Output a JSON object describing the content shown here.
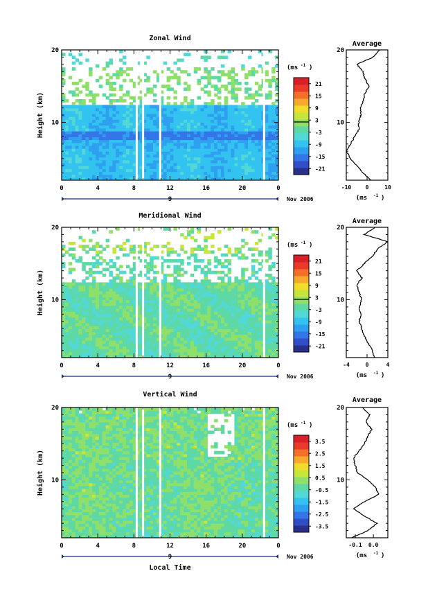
{
  "chart_data": [
    {
      "type": "heatmap",
      "title": "Zonal Wind",
      "ylabel": "Height (km)",
      "xlabel": "",
      "xlim": [
        0,
        24
      ],
      "ylim": [
        2,
        20
      ],
      "x_ticks": [
        "0",
        "4",
        "8",
        "12",
        "16",
        "20",
        "0"
      ],
      "y_ticks": [
        "10",
        "20"
      ],
      "date_label": "9",
      "month_label": "Nov 2006",
      "colorbar": {
        "unit": "(ms",
        "unit_exp": "-1",
        "ticks": [
          "21",
          "15",
          "9",
          "3",
          "-3",
          "-9",
          "-15",
          "-21"
        ],
        "vmin": -24,
        "vmax": 24,
        "colors": [
          "#2a2f8c",
          "#2f4ec8",
          "#3475e8",
          "#2f9ff0",
          "#33c3f0",
          "#52d8d6",
          "#5ed9a6",
          "#8fe06a",
          "#c8e63a",
          "#f0dc2a",
          "#f8a82a",
          "#f4702a",
          "#ec3a2a",
          "#d8202a"
        ]
      },
      "profile": {
        "title": "Average",
        "unit": "(ms",
        "unit_exp": "-1",
        "x_ticks": [
          "-10",
          "0",
          "10"
        ],
        "xlim": [
          -10,
          10
        ],
        "y_ticks": [
          "10",
          "20"
        ],
        "heights": [
          2,
          3,
          4,
          5,
          6,
          7,
          8,
          9,
          10,
          11,
          12,
          13,
          14,
          15,
          16,
          17,
          18,
          19,
          20
        ],
        "values": [
          2,
          -2,
          -5,
          -8,
          -10,
          -8,
          -6,
          -4,
          -4,
          -3,
          -3,
          -2,
          -1,
          1,
          -1,
          -2,
          -5,
          3,
          6
        ]
      }
    },
    {
      "type": "heatmap",
      "title": "Meridional Wind",
      "ylabel": "Height (km)",
      "xlabel": "",
      "xlim": [
        0,
        24
      ],
      "ylim": [
        2,
        20
      ],
      "x_ticks": [
        "0",
        "4",
        "8",
        "12",
        "16",
        "20",
        "0"
      ],
      "y_ticks": [
        "10",
        "20"
      ],
      "date_label": "9",
      "month_label": "Nov 2006",
      "colorbar": {
        "unit": "(ms",
        "unit_exp": "-1",
        "ticks": [
          "21",
          "15",
          "9",
          "3",
          "-3",
          "-9",
          "-15",
          "-21"
        ],
        "vmin": -24,
        "vmax": 24,
        "colors": [
          "#2a2f8c",
          "#2f4ec8",
          "#3475e8",
          "#2f9ff0",
          "#33c3f0",
          "#52d8d6",
          "#5ed9a6",
          "#8fe06a",
          "#c8e63a",
          "#f0dc2a",
          "#f8a82a",
          "#f4702a",
          "#ec3a2a",
          "#d8202a"
        ]
      },
      "profile": {
        "title": "Average",
        "unit": "(ms",
        "unit_exp": "-1",
        "x_ticks": [
          "-4",
          "0",
          "4"
        ],
        "xlim": [
          -4,
          4
        ],
        "y_ticks": [
          "10",
          "20"
        ],
        "heights": [
          2,
          3,
          4,
          5,
          6,
          7,
          8,
          9,
          10,
          11,
          12,
          13,
          14,
          15,
          16,
          17,
          18,
          19,
          20
        ],
        "values": [
          1.5,
          1.0,
          0.2,
          -0.5,
          -1.0,
          -1.5,
          -1.2,
          -1.5,
          -1.0,
          -1.5,
          -2.0,
          -1.0,
          -2.0,
          -0.5,
          1.0,
          2.0,
          4.0,
          -0.5,
          1.5
        ]
      }
    },
    {
      "type": "heatmap",
      "title": "Vertical Wind",
      "ylabel": "Height (km)",
      "xlabel": "Local Time",
      "xlim": [
        0,
        24
      ],
      "ylim": [
        2,
        20
      ],
      "x_ticks": [
        "0",
        "4",
        "8",
        "12",
        "16",
        "20",
        "0"
      ],
      "y_ticks": [
        "10",
        "20"
      ],
      "date_label": "9",
      "month_label": "Nov 2006",
      "colorbar": {
        "unit": "(ms",
        "unit_exp": "-1",
        "ticks": [
          "3.5",
          "2.5",
          "1.5",
          "0.5",
          "-0.5",
          "-1.5",
          "-2.5",
          "-3.5"
        ],
        "vmin": -4,
        "vmax": 4,
        "colors": [
          "#2a2f8c",
          "#2f4ec8",
          "#3475e8",
          "#2f9ff0",
          "#33c3f0",
          "#52d8d6",
          "#5ed9a6",
          "#8fe06a",
          "#c8e63a",
          "#f0dc2a",
          "#f8a82a",
          "#f4702a",
          "#ec3a2a",
          "#d8202a"
        ]
      },
      "profile": {
        "title": "Average",
        "unit": "(ms",
        "unit_exp": "-1",
        "x_ticks": [
          "-0.1",
          "0.0"
        ],
        "xlim": [
          -0.15,
          0.08
        ],
        "y_ticks": [
          "10",
          "20"
        ],
        "heights": [
          2,
          3,
          4,
          5,
          6,
          7,
          8,
          9,
          10,
          11,
          12,
          13,
          14,
          15,
          16,
          17,
          18,
          19,
          20
        ],
        "values": [
          -0.12,
          -0.03,
          0.02,
          -0.05,
          -0.11,
          -0.05,
          0.03,
          0.01,
          -0.03,
          -0.09,
          -0.1,
          -0.11,
          -0.08,
          -0.05,
          -0.03,
          -0.01,
          -0.04,
          -0.02,
          -0.06
        ]
      }
    }
  ]
}
